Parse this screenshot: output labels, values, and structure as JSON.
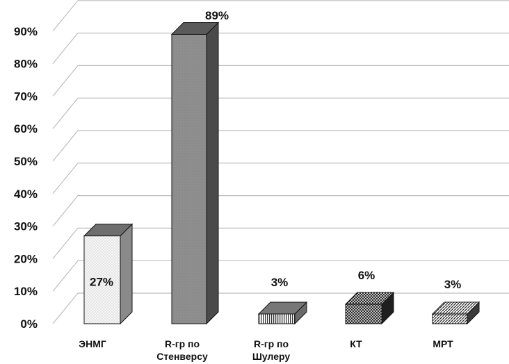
{
  "chart_data": {
    "type": "bar",
    "categories": [
      "ЭНМГ",
      "R-гр по Стенверсу",
      "R-гр по Шулеру",
      "КТ",
      "МРТ"
    ],
    "category_lines": [
      [
        "ЭНМГ"
      ],
      [
        "R-гр по",
        "Стенверсу"
      ],
      [
        "R-гр по",
        "Шулеру"
      ],
      [
        "КТ"
      ],
      [
        "МРТ"
      ]
    ],
    "values": [
      27,
      89,
      3,
      6,
      3
    ],
    "data_labels": [
      "27%",
      "89%",
      "3%",
      "6%",
      "3%"
    ],
    "y_ticks": [
      "0%",
      "10%",
      "20%",
      "30%",
      "40%",
      "50%",
      "60%",
      "70%",
      "80%",
      "90%"
    ],
    "ylim": [
      0,
      90
    ],
    "grid": true,
    "style": "3d-columns",
    "bar_fills": [
      "dots-light",
      "solid-gray",
      "vertical-stripes",
      "crosshatch",
      "diagonal-hatch"
    ],
    "colors": {
      "bar_gray": "#8c8c8c",
      "bar_dark": "#5a5a5a",
      "grid": "#bdbdbd",
      "text": "#111111"
    },
    "title": "",
    "xlabel": "",
    "ylabel": ""
  }
}
